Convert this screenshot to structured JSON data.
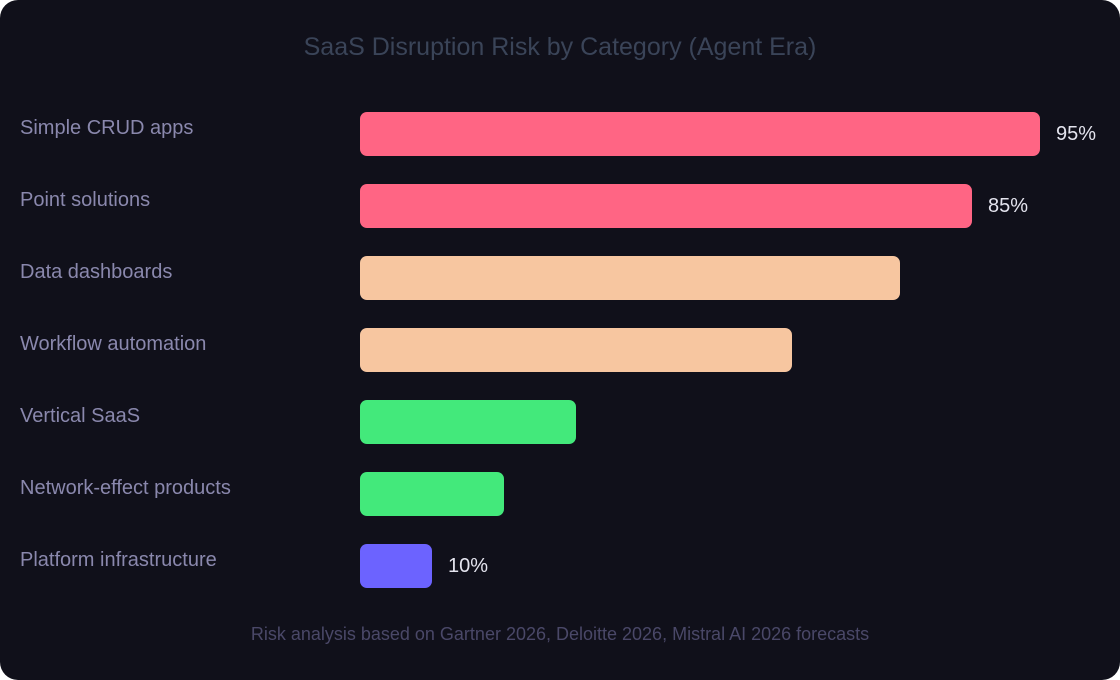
{
  "chart": {
    "title": "SaaS Disruption Risk by Category (Agent Era)",
    "footer": "Risk analysis based on Gartner 2026, Deloitte 2026, Mistral AI 2026 forecasts"
  },
  "colors": {
    "high": "#ff6584",
    "medium": "#f7c6a0",
    "low": "#43e97b",
    "minimal": "#6c63ff",
    "background": "#10101a"
  },
  "chart_data": {
    "type": "bar",
    "orientation": "horizontal",
    "title": "SaaS Disruption Risk by Category (Agent Era)",
    "xlabel": "",
    "ylabel": "",
    "xlim": [
      0,
      100
    ],
    "grid": false,
    "legend": "none",
    "categories": [
      "Simple CRUD apps",
      "Point solutions",
      "Data dashboards",
      "Workflow automation",
      "Vertical SaaS",
      "Network-effect products",
      "Platform infrastructure"
    ],
    "values": [
      95,
      85,
      75,
      60,
      30,
      20,
      10
    ],
    "value_labels": [
      "95%",
      "85%",
      "",
      "",
      "",
      "",
      "10%"
    ],
    "bar_colors": [
      "#ff6584",
      "#ff6584",
      "#f7c6a0",
      "#f7c6a0",
      "#43e97b",
      "#43e97b",
      "#6c63ff"
    ],
    "annotation": "Risk analysis based on Gartner 2026, Deloitte 2026, Mistral AI 2026 forecasts"
  }
}
